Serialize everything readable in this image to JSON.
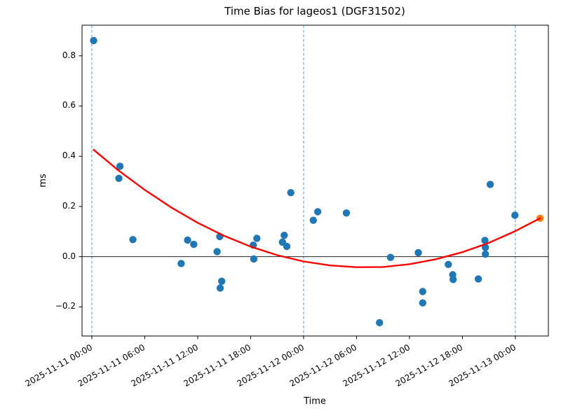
{
  "page": {
    "background": "#ffffff"
  },
  "chart_data": {
    "type": "scatter",
    "title": "Time Bias for lageos1 (DGF31502)",
    "xlabel": "Time",
    "ylabel": "ms",
    "time_epoch": "2025-11-11 00:00",
    "x_axis": {
      "tick_hours": [
        0,
        6,
        12,
        18,
        24,
        30,
        36,
        42,
        48
      ],
      "tick_labels": [
        "2025-11-11 00:00",
        "2025-11-11 06:00",
        "2025-11-11 12:00",
        "2025-11-11 18:00",
        "2025-11-12 00:00",
        "2025-11-12 06:00",
        "2025-11-12 12:00",
        "2025-11-12 18:00",
        "2025-11-13 00:00"
      ],
      "range_hours": [
        -1.11,
        51.74
      ],
      "label_rotation_deg": 30
    },
    "y_axis": {
      "tick_values": [
        -0.2,
        0.0,
        0.2,
        0.4,
        0.6,
        0.8
      ],
      "tick_labels": [
        "−0.2",
        "0.0",
        "0.2",
        "0.4",
        "0.6",
        "0.8"
      ],
      "range": [
        -0.316,
        0.922
      ]
    },
    "day_boundary_vlines_hours": [
      0,
      24,
      48
    ],
    "zero_hline_value": 0.0,
    "grid": "off",
    "legend": "none",
    "colors": {
      "scatter": "#1f77b4",
      "latest": "#ff7f0e",
      "fit": "#ff0000",
      "vline": "#5b9ec9",
      "zero_line": "#000000"
    },
    "series": [
      {
        "name": "time_bias_points",
        "type": "scatter",
        "color_key": "scatter",
        "points_format": [
          "hours_since_epoch",
          "ms"
        ],
        "points": [
          [
            0.2,
            0.861
          ],
          [
            3.06,
            0.312
          ],
          [
            3.19,
            0.36
          ],
          [
            4.65,
            0.068
          ],
          [
            10.13,
            -0.027
          ],
          [
            10.85,
            0.066
          ],
          [
            11.55,
            0.049
          ],
          [
            14.2,
            0.02
          ],
          [
            14.5,
            0.08
          ],
          [
            14.55,
            -0.125
          ],
          [
            14.72,
            -0.098
          ],
          [
            18.3,
            0.046
          ],
          [
            18.35,
            -0.009
          ],
          [
            18.7,
            0.073
          ],
          [
            21.6,
            0.058
          ],
          [
            21.8,
            0.085
          ],
          [
            22.1,
            0.041
          ],
          [
            22.55,
            0.255
          ],
          [
            25.1,
            0.145
          ],
          [
            25.6,
            0.179
          ],
          [
            28.85,
            0.174
          ],
          [
            32.6,
            -0.263
          ],
          [
            33.85,
            -0.003
          ],
          [
            37.0,
            0.016
          ],
          [
            37.5,
            -0.139
          ],
          [
            37.5,
            -0.184
          ],
          [
            40.4,
            -0.031
          ],
          [
            40.9,
            -0.072
          ],
          [
            40.95,
            -0.091
          ],
          [
            43.8,
            -0.089
          ],
          [
            44.55,
            0.065
          ],
          [
            44.6,
            0.037
          ],
          [
            44.6,
            0.01
          ],
          [
            45.15,
            0.288
          ],
          [
            47.95,
            0.165
          ]
        ]
      },
      {
        "name": "latest_point",
        "type": "scatter",
        "color_key": "latest",
        "points_format": [
          "hours_since_epoch",
          "ms"
        ],
        "points": [
          [
            50.8,
            0.153
          ]
        ]
      },
      {
        "name": "polynomial_fit",
        "type": "line",
        "color_key": "fit",
        "points_format": [
          "hours_since_epoch",
          "ms"
        ],
        "points": [
          [
            0.2,
            0.426
          ],
          [
            3,
            0.344
          ],
          [
            6,
            0.266
          ],
          [
            9,
            0.196
          ],
          [
            12,
            0.135
          ],
          [
            15,
            0.083
          ],
          [
            18,
            0.04
          ],
          [
            21,
            0.006
          ],
          [
            24,
            -0.019
          ],
          [
            27,
            -0.035
          ],
          [
            30,
            -0.042
          ],
          [
            33,
            -0.041
          ],
          [
            36,
            -0.03
          ],
          [
            39,
            -0.01
          ],
          [
            42,
            0.018
          ],
          [
            45,
            0.055
          ],
          [
            48,
            0.102
          ],
          [
            50.8,
            0.153
          ]
        ]
      }
    ]
  }
}
